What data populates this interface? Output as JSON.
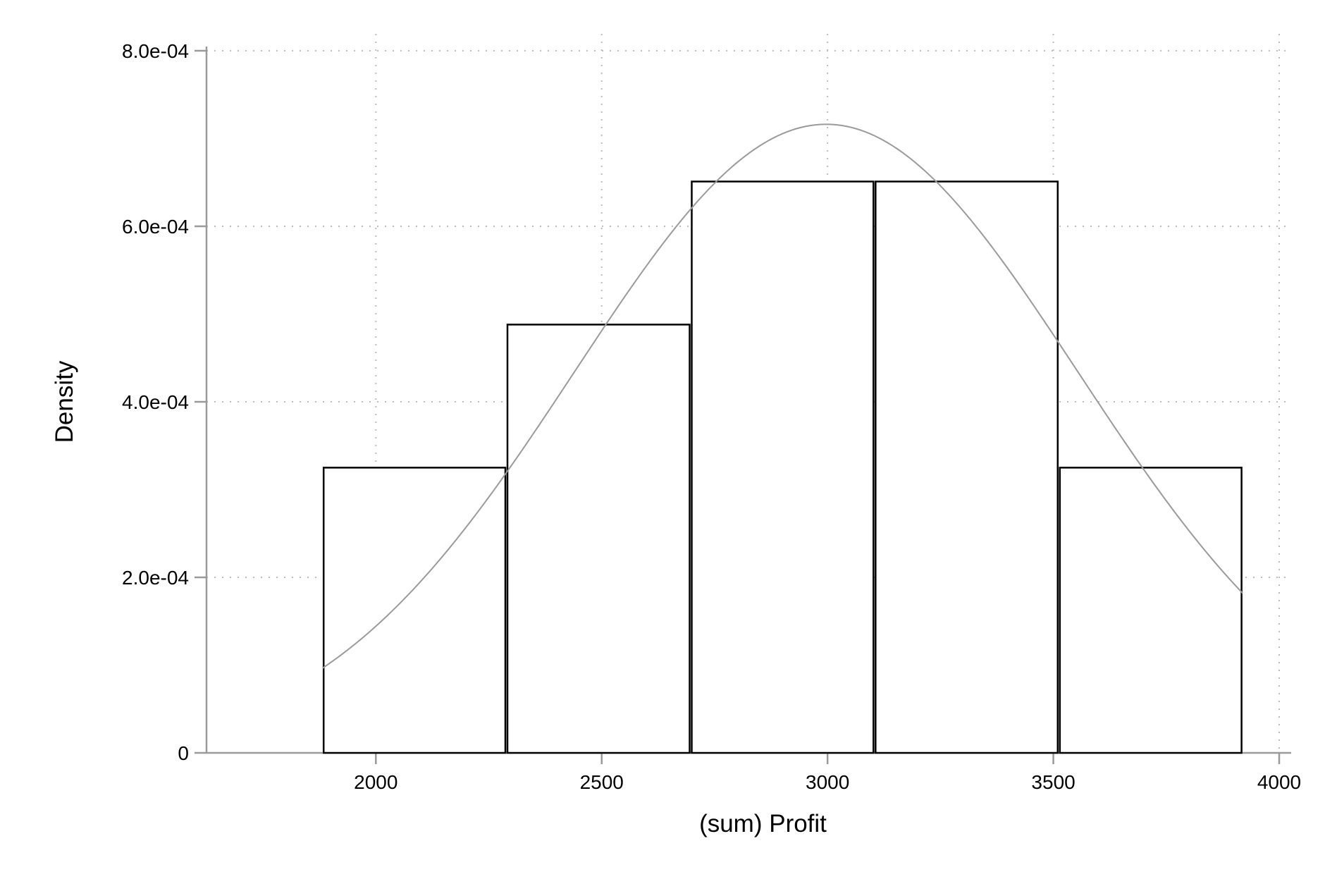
{
  "chart_data": {
    "type": "bar",
    "subtype": "histogram",
    "xlabel": "(sum) Profit",
    "ylabel": "Density",
    "xlim": [
      1625,
      4000
    ],
    "ylim": [
      0,
      0.0008
    ],
    "x_ticks": [
      2000,
      2500,
      3000,
      3500,
      4000
    ],
    "x_tick_labels": [
      "2000",
      "2500",
      "3000",
      "3500",
      "4000"
    ],
    "y_ticks": [
      0,
      0.0002,
      0.0004,
      0.0006,
      0.0008
    ],
    "y_tick_labels": [
      "0",
      "2.0e-04",
      "4.0e-04",
      "6.0e-04",
      "8.0e-04"
    ],
    "grid": true,
    "bins": [
      {
        "start": 1882,
        "end": 2289,
        "density": 0.000325
      },
      {
        "start": 2289,
        "end": 2697,
        "density": 0.000488
      },
      {
        "start": 2697,
        "end": 3104,
        "density": 0.000651
      },
      {
        "start": 3104,
        "end": 3512,
        "density": 0.000651
      },
      {
        "start": 3512,
        "end": 3919,
        "density": 0.000325
      }
    ],
    "normal_curve": {
      "mean": 2997,
      "sd": 557,
      "x_range": [
        1882,
        3919
      ],
      "color": "#9a9a9a"
    },
    "colors": {
      "bar_fill": "#ffffff",
      "bar_stroke": "#000000",
      "axis": "#9a9a9a",
      "grid": "#bcbcbc"
    }
  }
}
